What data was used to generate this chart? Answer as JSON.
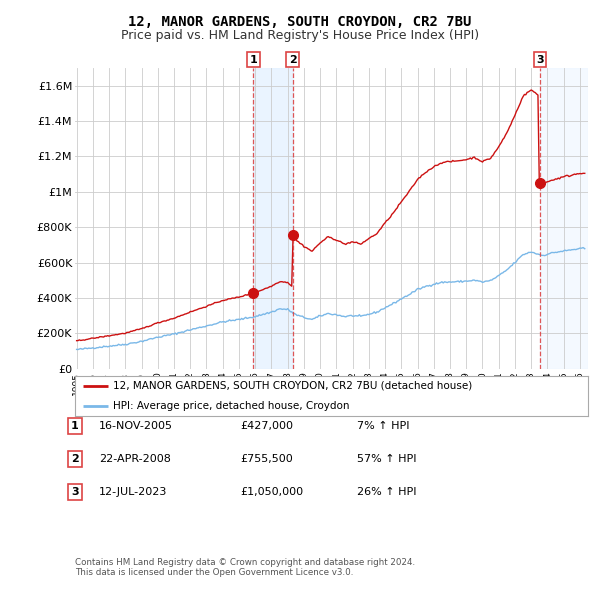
{
  "title": "12, MANOR GARDENS, SOUTH CROYDON, CR2 7BU",
  "subtitle": "Price paid vs. HM Land Registry's House Price Index (HPI)",
  "xlim_start": 1995.0,
  "xlim_end": 2026.5,
  "ylim": [
    0,
    1700000
  ],
  "yticks": [
    0,
    200000,
    400000,
    600000,
    800000,
    1000000,
    1200000,
    1400000,
    1600000
  ],
  "ytick_labels": [
    "£0",
    "£200K",
    "£400K",
    "£600K",
    "£800K",
    "£1M",
    "£1.2M",
    "£1.4M",
    "£1.6M"
  ],
  "hpi_color": "#7ab8e8",
  "price_color": "#cc1111",
  "transaction_line_color": "#dd4444",
  "shade_color": "#ddeeff",
  "transactions": [
    {
      "year": 2005.88,
      "price": 427000,
      "label": "1",
      "date": "16-NOV-2005",
      "price_str": "£427,000",
      "pct": "7% ↑ HPI"
    },
    {
      "year": 2008.31,
      "price": 755500,
      "label": "2",
      "date": "22-APR-2008",
      "price_str": "£755,500",
      "pct": "57% ↑ HPI"
    },
    {
      "year": 2023.53,
      "price": 1050000,
      "label": "3",
      "date": "12-JUL-2023",
      "price_str": "£1,050,000",
      "pct": "26% ↑ HPI"
    }
  ],
  "legend_label1": "12, MANOR GARDENS, SOUTH CROYDON, CR2 7BU (detached house)",
  "legend_label2": "HPI: Average price, detached house, Croydon",
  "footer": "Contains HM Land Registry data © Crown copyright and database right 2024.\nThis data is licensed under the Open Government Licence v3.0.",
  "background_color": "#ffffff",
  "grid_color": "#cccccc",
  "title_fontsize": 10,
  "subtitle_fontsize": 9
}
